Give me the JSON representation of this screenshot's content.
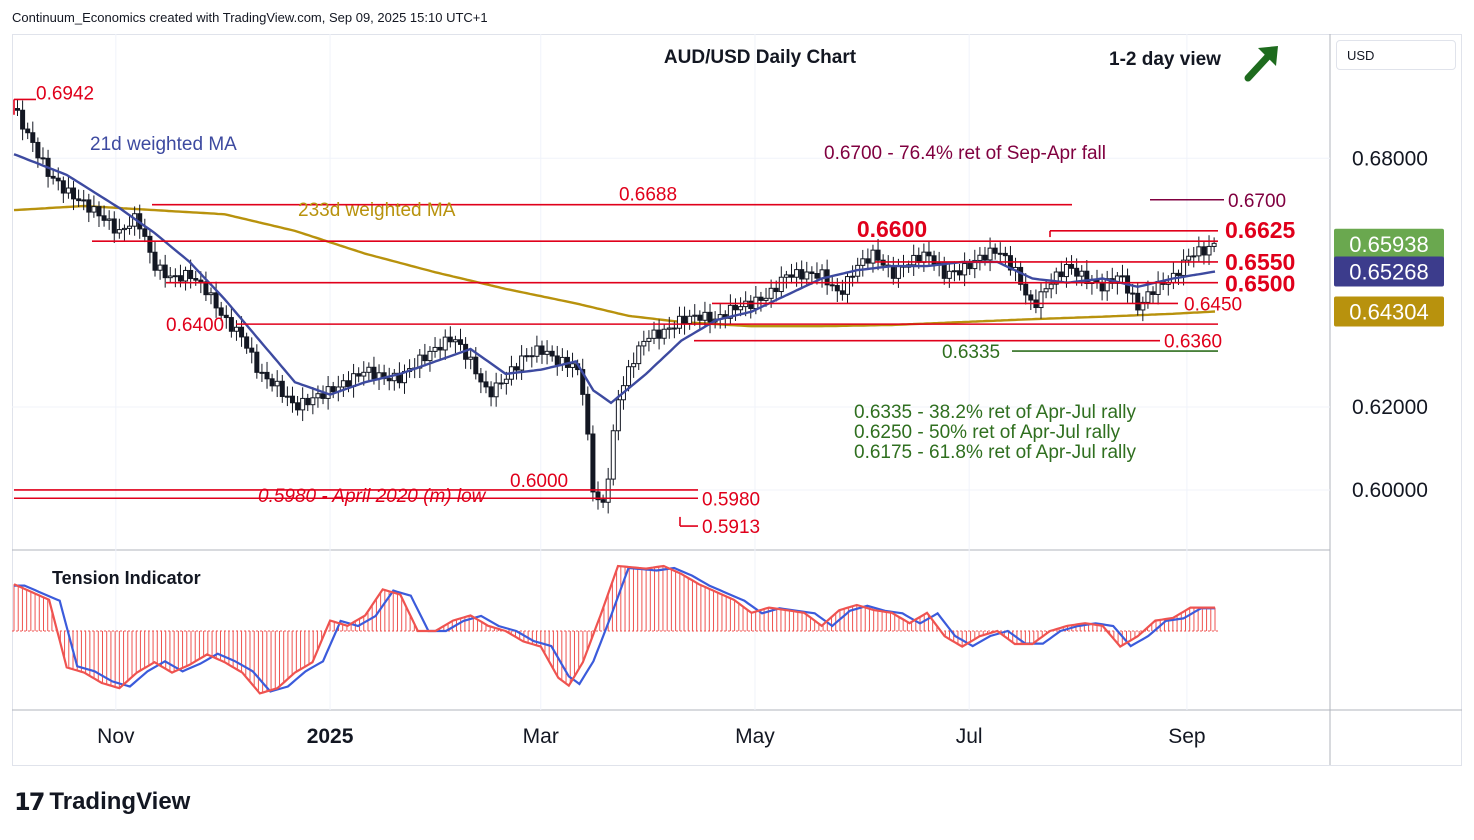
{
  "header": {
    "text": "Continuum_Economics created with TradingView.com, Sep 09, 2025 15:10 UTC+1"
  },
  "brand": {
    "name": "TradingView",
    "logo": "17"
  },
  "currency_button": "USD",
  "chart_data": {
    "type": "candlestick",
    "title": "AUD/USD Daily Chart",
    "view_label": "1-2 day view",
    "view_arrow": "up-right-arrow",
    "y_axis": {
      "ticks": [
        0.68,
        0.62,
        0.6
      ],
      "tick_labels": [
        "0.68000",
        "0.62000",
        "0.60000"
      ],
      "range": [
        0.586,
        0.7095
      ]
    },
    "x_axis": {
      "labels": [
        "Nov",
        "2025",
        "Mar",
        "May",
        "Jul",
        "Sep"
      ]
    },
    "price_badges": [
      {
        "label": "0.65938",
        "value": 0.65938,
        "color": "#6aa84f",
        "text_color": "#ffffff"
      },
      {
        "label": "0.65268",
        "value": 0.65268,
        "color": "#3c3c8c",
        "text_color": "#ffffff"
      },
      {
        "label": "0.64304",
        "value": 0.64304,
        "color": "#b8920d",
        "text_color": "#ffffff"
      }
    ],
    "series_labels": {
      "ma21": "21d weighted MA",
      "ma233": "233d weighted MA"
    },
    "colors": {
      "up": "#26a69a",
      "down": "#ef5350",
      "level": "#e0001b",
      "ma21": "#3d4aa0",
      "ma233": "#b8920d",
      "fib": "#2f6f1f",
      "target": "#800040",
      "candle": "#131722"
    },
    "levels": [
      {
        "label": "0.6942",
        "value": 0.6942
      },
      {
        "label": "0.6688",
        "value": 0.6688
      },
      {
        "label": "0.6600",
        "value": 0.66
      },
      {
        "label": "0.6625",
        "value": 0.6625
      },
      {
        "label": "0.6550",
        "value": 0.655
      },
      {
        "label": "0.6500",
        "value": 0.65
      },
      {
        "label": "0.6450",
        "value": 0.645
      },
      {
        "label": "0.6400",
        "value": 0.64
      },
      {
        "label": "0.6360",
        "value": 0.636
      },
      {
        "label": "0.6000",
        "value": 0.6
      },
      {
        "label": "0.5980",
        "value": 0.598
      },
      {
        "label": "0.5913",
        "value": 0.5913
      }
    ],
    "fib_level": {
      "label": "0.6335",
      "value": 0.6335
    },
    "target_level": {
      "label": "0.6700",
      "value": 0.67
    },
    "annotations": {
      "target": "0.6700 - 76.4% ret of Sep-Apr fall",
      "april_low": "0.5980 - April 2020 (m) low",
      "fib_1": "0.6335 - 38.2% ret of Apr-Jul rally",
      "fib_2": "0.6250 - 50% ret of Apr-Jul rally",
      "fib_3": "0.6175 - 61.8% ret of Apr-Jul rally"
    },
    "price_path": [
      [
        0,
        0.692
      ],
      [
        5,
        0.684
      ],
      [
        10,
        0.676
      ],
      [
        15,
        0.672
      ],
      [
        20,
        0.669
      ],
      [
        25,
        0.666
      ],
      [
        30,
        0.662
      ],
      [
        35,
        0.666
      ],
      [
        40,
        0.654
      ],
      [
        45,
        0.651
      ],
      [
        50,
        0.652
      ],
      [
        55,
        0.648
      ],
      [
        60,
        0.641
      ],
      [
        65,
        0.637
      ],
      [
        70,
        0.628
      ],
      [
        75,
        0.625
      ],
      [
        80,
        0.62
      ],
      [
        85,
        0.622
      ],
      [
        90,
        0.624
      ],
      [
        95,
        0.626
      ],
      [
        100,
        0.629
      ],
      [
        105,
        0.627
      ],
      [
        110,
        0.627
      ],
      [
        115,
        0.631
      ],
      [
        120,
        0.634
      ],
      [
        125,
        0.637
      ],
      [
        130,
        0.631
      ],
      [
        135,
        0.623
      ],
      [
        140,
        0.627
      ],
      [
        145,
        0.632
      ],
      [
        150,
        0.634
      ],
      [
        155,
        0.631
      ],
      [
        160,
        0.63
      ],
      [
        162,
        0.624
      ],
      [
        165,
        0.599
      ],
      [
        168,
        0.596
      ],
      [
        172,
        0.622
      ],
      [
        176,
        0.631
      ],
      [
        180,
        0.637
      ],
      [
        185,
        0.638
      ],
      [
        190,
        0.641
      ],
      [
        195,
        0.642
      ],
      [
        200,
        0.641
      ],
      [
        205,
        0.644
      ],
      [
        210,
        0.645
      ],
      [
        215,
        0.647
      ],
      [
        220,
        0.652
      ],
      [
        225,
        0.652
      ],
      [
        230,
        0.652
      ],
      [
        235,
        0.647
      ],
      [
        240,
        0.654
      ],
      [
        245,
        0.657
      ],
      [
        250,
        0.652
      ],
      [
        255,
        0.655
      ],
      [
        260,
        0.657
      ],
      [
        265,
        0.652
      ],
      [
        270,
        0.653
      ],
      [
        275,
        0.656
      ],
      [
        280,
        0.658
      ],
      [
        285,
        0.653
      ],
      [
        290,
        0.644
      ],
      [
        295,
        0.65
      ],
      [
        300,
        0.654
      ],
      [
        305,
        0.651
      ],
      [
        310,
        0.649
      ],
      [
        315,
        0.652
      ],
      [
        320,
        0.644
      ],
      [
        325,
        0.649
      ],
      [
        330,
        0.651
      ],
      [
        335,
        0.657
      ],
      [
        340,
        0.658
      ],
      [
        342,
        0.6594
      ]
    ],
    "ma21_path": [
      [
        0,
        0.681
      ],
      [
        15,
        0.676
      ],
      [
        30,
        0.668
      ],
      [
        40,
        0.662
      ],
      [
        50,
        0.655
      ],
      [
        60,
        0.646
      ],
      [
        70,
        0.636
      ],
      [
        80,
        0.626
      ],
      [
        90,
        0.623
      ],
      [
        100,
        0.626
      ],
      [
        110,
        0.628
      ],
      [
        120,
        0.631
      ],
      [
        130,
        0.634
      ],
      [
        140,
        0.628
      ],
      [
        150,
        0.629
      ],
      [
        160,
        0.631
      ],
      [
        165,
        0.624
      ],
      [
        170,
        0.621
      ],
      [
        180,
        0.628
      ],
      [
        190,
        0.636
      ],
      [
        200,
        0.641
      ],
      [
        210,
        0.643
      ],
      [
        220,
        0.647
      ],
      [
        230,
        0.651
      ],
      [
        240,
        0.653
      ],
      [
        250,
        0.654
      ],
      [
        260,
        0.654
      ],
      [
        270,
        0.655
      ],
      [
        280,
        0.655
      ],
      [
        290,
        0.651
      ],
      [
        300,
        0.65
      ],
      [
        310,
        0.651
      ],
      [
        320,
        0.649
      ],
      [
        330,
        0.651
      ],
      [
        342,
        0.65268
      ]
    ],
    "ma233_path": [
      [
        0,
        0.6675
      ],
      [
        20,
        0.6685
      ],
      [
        40,
        0.6675
      ],
      [
        60,
        0.6665
      ],
      [
        80,
        0.6625
      ],
      [
        100,
        0.657
      ],
      [
        120,
        0.6525
      ],
      [
        140,
        0.6485
      ],
      [
        160,
        0.645
      ],
      [
        175,
        0.642
      ],
      [
        190,
        0.6405
      ],
      [
        210,
        0.6395
      ],
      [
        230,
        0.6395
      ],
      [
        250,
        0.6398
      ],
      [
        270,
        0.6405
      ],
      [
        290,
        0.6412
      ],
      [
        310,
        0.6418
      ],
      [
        330,
        0.6425
      ],
      [
        342,
        0.64304
      ]
    ],
    "tension_indicator": {
      "label": "Tension Indicator",
      "histogram": [
        [
          0,
          0.9
        ],
        [
          10,
          0.6
        ],
        [
          15,
          -0.7
        ],
        [
          20,
          -0.8
        ],
        [
          25,
          -1.0
        ],
        [
          30,
          -1.1
        ],
        [
          35,
          -0.8
        ],
        [
          40,
          -0.6
        ],
        [
          45,
          -0.8
        ],
        [
          50,
          -0.65
        ],
        [
          55,
          -0.45
        ],
        [
          60,
          -0.6
        ],
        [
          65,
          -0.8
        ],
        [
          70,
          -1.2
        ],
        [
          75,
          -1.1
        ],
        [
          80,
          -0.8
        ],
        [
          85,
          -0.6
        ],
        [
          90,
          0.2
        ],
        [
          95,
          0.1
        ],
        [
          100,
          0.3
        ],
        [
          105,
          0.8
        ],
        [
          110,
          0.7
        ],
        [
          115,
          0.0
        ],
        [
          120,
          0.0
        ],
        [
          125,
          0.2
        ],
        [
          130,
          0.3
        ],
        [
          135,
          0.1
        ],
        [
          140,
          0.0
        ],
        [
          145,
          -0.2
        ],
        [
          150,
          -0.3
        ],
        [
          155,
          -0.9
        ],
        [
          158,
          -1.05
        ],
        [
          162,
          -0.6
        ],
        [
          167,
          0.3
        ],
        [
          172,
          1.25
        ],
        [
          180,
          1.2
        ],
        [
          185,
          1.25
        ],
        [
          190,
          1.1
        ],
        [
          195,
          0.9
        ],
        [
          200,
          0.75
        ],
        [
          205,
          0.6
        ],
        [
          210,
          0.35
        ],
        [
          215,
          0.45
        ],
        [
          220,
          0.4
        ],
        [
          225,
          0.35
        ],
        [
          230,
          0.1
        ],
        [
          235,
          0.4
        ],
        [
          240,
          0.5
        ],
        [
          245,
          0.4
        ],
        [
          250,
          0.35
        ],
        [
          255,
          0.15
        ],
        [
          260,
          0.35
        ],
        [
          265,
          -0.1
        ],
        [
          270,
          -0.3
        ],
        [
          275,
          -0.1
        ],
        [
          280,
          0.0
        ],
        [
          285,
          -0.25
        ],
        [
          290,
          -0.25
        ],
        [
          295,
          0.0
        ],
        [
          300,
          0.1
        ],
        [
          305,
          0.15
        ],
        [
          310,
          0.1
        ],
        [
          315,
          -0.3
        ],
        [
          320,
          -0.1
        ],
        [
          325,
          0.2
        ],
        [
          330,
          0.25
        ],
        [
          335,
          0.45
        ],
        [
          342,
          0.45
        ]
      ]
    }
  }
}
